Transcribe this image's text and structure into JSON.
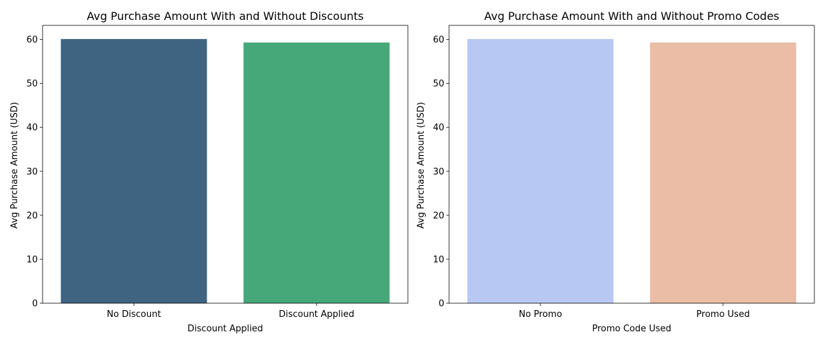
{
  "chart_data": [
    {
      "type": "bar",
      "title": "Avg Purchase Amount With and Without Discounts",
      "xlabel": "Discount Applied",
      "ylabel": "Avg Purchase Amount (USD)",
      "categories": [
        "No Discount",
        "Discount Applied"
      ],
      "values": [
        60.1,
        59.3
      ],
      "colors": [
        "#3e6482",
        "#46a779"
      ],
      "ylim": [
        0,
        63.2
      ],
      "yticks": [
        0,
        10,
        20,
        30,
        40,
        50,
        60
      ],
      "grid": false,
      "legend": "none"
    },
    {
      "type": "bar",
      "title": "Avg Purchase Amount With and Without Promo Codes",
      "xlabel": "Promo Code Used",
      "ylabel": "Avg Purchase Amount (USD)",
      "categories": [
        "No Promo",
        "Promo Used"
      ],
      "values": [
        60.1,
        59.3
      ],
      "colors": [
        "#b7c9f2",
        "#ebbca6"
      ],
      "ylim": [
        0,
        63.2
      ],
      "yticks": [
        0,
        10,
        20,
        30,
        40,
        50,
        60
      ],
      "grid": false,
      "legend": "none"
    }
  ]
}
